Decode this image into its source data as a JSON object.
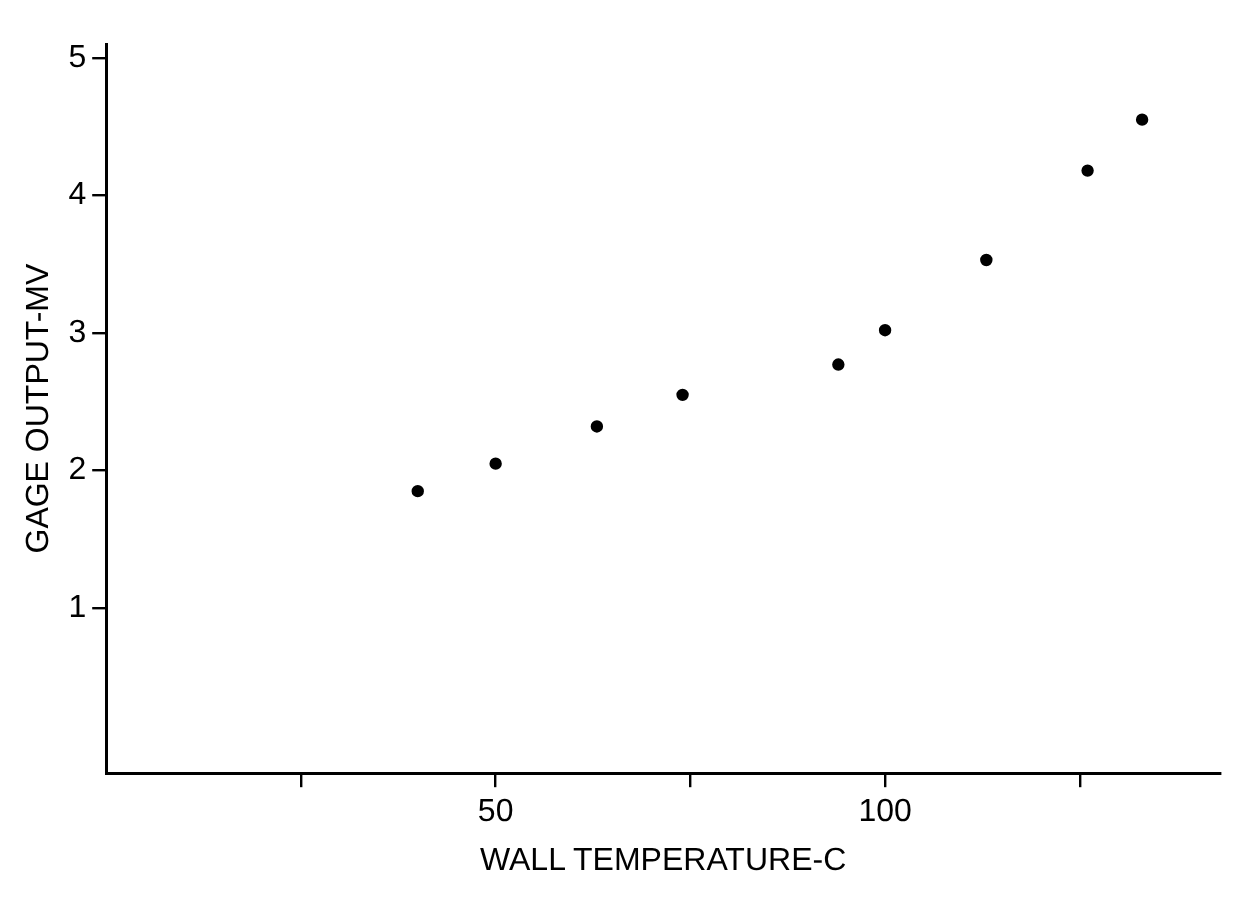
{
  "chart_data": {
    "type": "scatter",
    "xlabel": "WALL TEMPERATURE-C",
    "ylabel": "GAGE OUTPUT-MV",
    "x": [
      40,
      50,
      63,
      74,
      94,
      100,
      113,
      126,
      133
    ],
    "values": [
      1.85,
      2.05,
      2.32,
      2.55,
      2.77,
      3.02,
      3.53,
      4.18,
      4.55
    ],
    "color": "#000000",
    "marker": "circle",
    "xlim": [
      0,
      143
    ],
    "xticks": [
      {
        "value": 25,
        "label": null
      },
      50,
      {
        "value": 75,
        "label": null
      },
      100,
      {
        "value": 125,
        "label": null
      }
    ],
    "ylim": [
      -0.2,
      5.1
    ],
    "yticks": [
      1,
      2,
      3,
      4,
      5
    ],
    "grid": false,
    "legend": false
  }
}
